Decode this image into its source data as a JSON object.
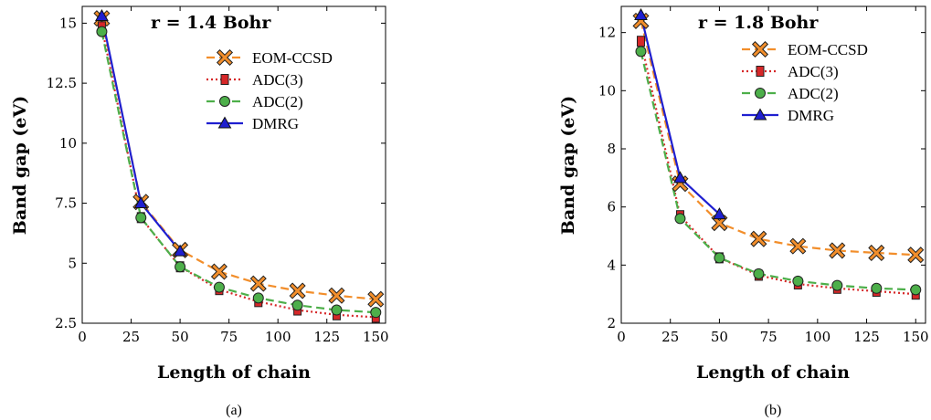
{
  "chart_data": [
    {
      "type": "line",
      "caption": "(a)",
      "annotation": "r  = 1.4 Bohr",
      "xlabel": "Length of chain",
      "ylabel": "Band gap (eV)",
      "xlim": [
        0,
        155
      ],
      "ylim": [
        2.5,
        15.7
      ],
      "xticks": [
        0,
        25,
        50,
        75,
        100,
        125,
        150
      ],
      "yticks": [
        2.5,
        5,
        7.5,
        10,
        12.5,
        15
      ],
      "xtick_labels": [
        "0",
        "25",
        "50",
        "75",
        "100",
        "125",
        "150"
      ],
      "ytick_labels": [
        "2.5",
        "5",
        "7.5",
        "10",
        "12.5",
        "15"
      ],
      "legend_position": "upper-right",
      "series": [
        {
          "name": "EOM-CCSD",
          "color": "#f28e2b",
          "marker": "x-square",
          "dash": "9,5",
          "x": [
            10,
            30,
            50,
            70,
            90,
            110,
            130,
            150
          ],
          "y": [
            15.2,
            7.55,
            5.55,
            4.65,
            4.15,
            3.85,
            3.65,
            3.5
          ]
        },
        {
          "name": "ADC(3)",
          "color": "#d62728",
          "marker": "square",
          "dash": "2,3",
          "x": [
            10,
            30,
            50,
            70,
            90,
            110,
            130,
            150
          ],
          "y": [
            14.85,
            6.9,
            4.85,
            3.9,
            3.4,
            3.05,
            2.85,
            2.75
          ]
        },
        {
          "name": "ADC(2)",
          "color": "#4daf4a",
          "marker": "circle",
          "dash": "9,5",
          "x": [
            10,
            30,
            50,
            70,
            90,
            110,
            130,
            150
          ],
          "y": [
            14.65,
            6.9,
            4.85,
            4.0,
            3.55,
            3.25,
            3.05,
            2.95
          ]
        },
        {
          "name": "DMRG",
          "color": "#1f1fd0",
          "marker": "triangle",
          "dash": "",
          "x": [
            10,
            30,
            50
          ],
          "y": [
            15.3,
            7.5,
            5.5
          ]
        }
      ]
    },
    {
      "type": "line",
      "caption": "(b)",
      "annotation": "r  = 1.8 Bohr",
      "xlabel": "Length of chain",
      "ylabel": "Band gap (eV)",
      "xlim": [
        0,
        155
      ],
      "ylim": [
        2,
        12.9
      ],
      "xticks": [
        0,
        25,
        50,
        75,
        100,
        125,
        150
      ],
      "yticks": [
        2,
        4,
        6,
        8,
        10,
        12
      ],
      "xtick_labels": [
        "0",
        "25",
        "50",
        "75",
        "100",
        "125",
        "150"
      ],
      "ytick_labels": [
        "2",
        "4",
        "6",
        "8",
        "10",
        "12"
      ],
      "legend_position": "upper-right",
      "series": [
        {
          "name": "EOM-CCSD",
          "color": "#f28e2b",
          "marker": "x-square",
          "dash": "9,5",
          "x": [
            10,
            30,
            50,
            70,
            90,
            110,
            130,
            150
          ],
          "y": [
            12.4,
            6.8,
            5.45,
            4.9,
            4.65,
            4.5,
            4.42,
            4.35
          ]
        },
        {
          "name": "ADC(3)",
          "color": "#d62728",
          "marker": "square",
          "dash": "2,3",
          "x": [
            10,
            30,
            50,
            70,
            90,
            110,
            130,
            150
          ],
          "y": [
            11.7,
            5.7,
            4.25,
            3.65,
            3.35,
            3.2,
            3.1,
            3.0
          ]
        },
        {
          "name": "ADC(2)",
          "color": "#4daf4a",
          "marker": "circle",
          "dash": "9,5",
          "x": [
            10,
            30,
            50,
            70,
            90,
            110,
            130,
            150
          ],
          "y": [
            11.35,
            5.6,
            4.25,
            3.7,
            3.45,
            3.3,
            3.2,
            3.15
          ]
        },
        {
          "name": "DMRG",
          "color": "#1f1fd0",
          "marker": "triangle",
          "dash": "",
          "x": [
            10,
            30,
            50
          ],
          "y": [
            12.6,
            7.0,
            5.75
          ]
        }
      ]
    }
  ]
}
